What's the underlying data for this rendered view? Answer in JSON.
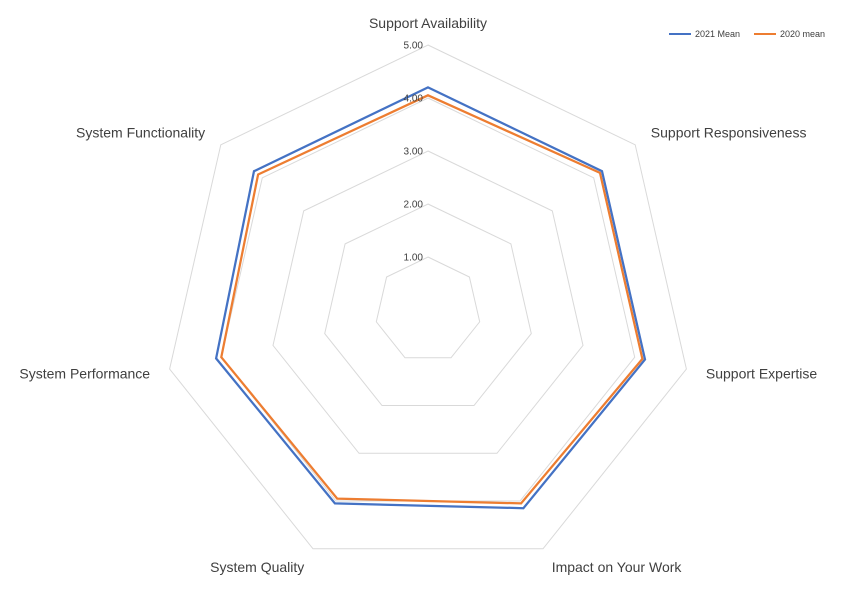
{
  "chart_data": {
    "type": "radar",
    "categories": [
      "Support Availability",
      "Support Responsiveness",
      "Support Expertise",
      "Impact on Your Work",
      "System Quality",
      "System Performance",
      "System Functionality"
    ],
    "series": [
      {
        "name": "2021 Mean",
        "color": "#4472C4",
        "values": [
          4.2,
          4.2,
          4.2,
          4.15,
          4.05,
          4.1,
          4.2
        ]
      },
      {
        "name": "2020 mean",
        "color": "#ED7D31",
        "values": [
          4.05,
          4.15,
          4.15,
          4.05,
          3.95,
          4.0,
          4.1
        ]
      }
    ],
    "rlim": [
      0,
      5
    ],
    "ticks": [
      "1.00",
      "2.00",
      "3.00",
      "4.00",
      "5.00"
    ],
    "tick_values": [
      1,
      2,
      3,
      4,
      5
    ],
    "grid": true,
    "grid_color": "#D9D9D9",
    "legend_position": "top-right"
  }
}
